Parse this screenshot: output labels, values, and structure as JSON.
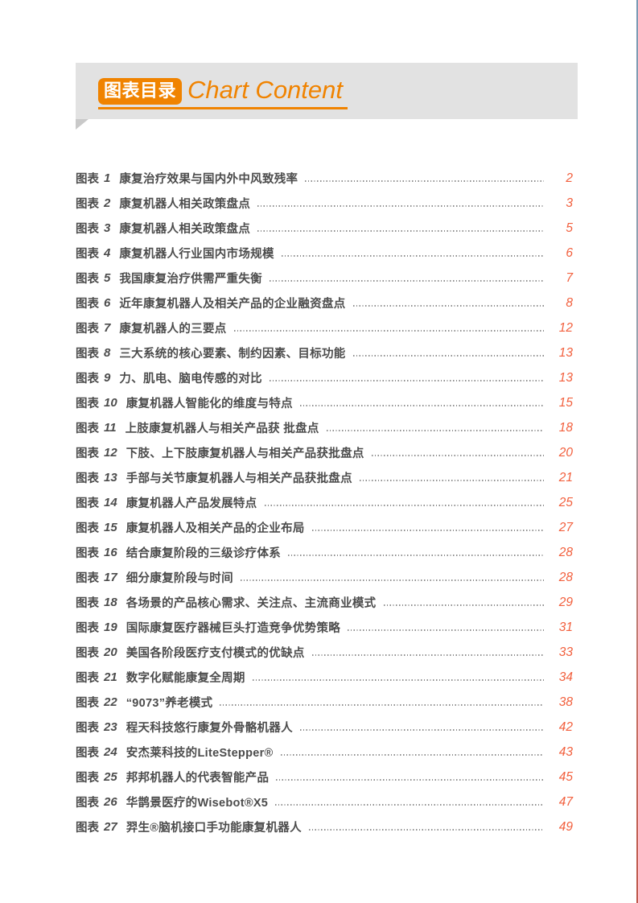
{
  "header": {
    "badge": "图表目录",
    "title": "Chart Content"
  },
  "colors": {
    "accent": "#F08300",
    "page_number": "#F2603E",
    "body_text": "#4C4C4C",
    "banner_bg": "#E2E2E2",
    "banner_fold": "#C9C9C9",
    "leader_dots": "#8F8F8F",
    "edge_gradient_top": "#7A9AB4",
    "edge_gradient_bottom": "#C05A4E"
  },
  "toc": {
    "item_prefix": "图表",
    "entries": [
      {
        "num": "1",
        "title": "康复治疗效果与国内外中风致残率",
        "page": "2"
      },
      {
        "num": "2",
        "title": "康复机器人相关政策盘点",
        "page": "3"
      },
      {
        "num": "3",
        "title": "康复机器人相关政策盘点",
        "page": "5"
      },
      {
        "num": "4",
        "title": "康复机器人行业国内市场规模",
        "page": "6"
      },
      {
        "num": "5",
        "title": "我国康复治疗供需严重失衡",
        "page": "7"
      },
      {
        "num": "6",
        "title": "近年康复机器人及相关产品的企业融资盘点",
        "page": "8"
      },
      {
        "num": "7",
        "title": "康复机器人的三要点",
        "page": "12"
      },
      {
        "num": "8",
        "title": "三大系统的核心要素、制约因素、目标功能",
        "page": "13"
      },
      {
        "num": "9",
        "title": "力、肌电、脑电传感的对比",
        "page": "13"
      },
      {
        "num": "10",
        "title": "康复机器人智能化的维度与特点",
        "page": "15"
      },
      {
        "num": "11",
        "title": "上肢康复机器人与相关产品获 批盘点",
        "page": "18"
      },
      {
        "num": "12",
        "title": "下肢、上下肢康复机器人与相关产品获批盘点",
        "page": "20"
      },
      {
        "num": "13",
        "title": "手部与关节康复机器人与相关产品获批盘点",
        "page": "21"
      },
      {
        "num": "14",
        "title": "康复机器人产品发展特点",
        "page": "25"
      },
      {
        "num": "15",
        "title": "康复机器人及相关产品的企业布局",
        "page": "27"
      },
      {
        "num": "16",
        "title": "结合康复阶段的三级诊疗体系",
        "page": "28"
      },
      {
        "num": "17",
        "title": "细分康复阶段与时间",
        "page": "28"
      },
      {
        "num": "18",
        "title": "各场景的产品核心需求、关注点、主流商业模式",
        "page": "29"
      },
      {
        "num": "19",
        "title": "国际康复医疗器械巨头打造竞争优势策略",
        "page": "31"
      },
      {
        "num": "20",
        "title": "美国各阶段医疗支付模式的优缺点",
        "page": "33"
      },
      {
        "num": "21",
        "title": "数字化赋能康复全周期",
        "page": "34"
      },
      {
        "num": "22",
        "title": "“9073”养老模式",
        "page": "38"
      },
      {
        "num": "23",
        "title": "程天科技悠行康复外骨骼机器人",
        "page": "42"
      },
      {
        "num": "24",
        "title": "安杰莱科技的LiteStepper®",
        "page": "43"
      },
      {
        "num": "25",
        "title": "邦邦机器人的代表智能产品",
        "page": "45"
      },
      {
        "num": "26",
        "title": "华鹊景医疗的Wisebot®X5",
        "page": "47"
      },
      {
        "num": "27",
        "title": "羿生®脑机接口手功能康复机器人",
        "page": "49"
      }
    ]
  }
}
